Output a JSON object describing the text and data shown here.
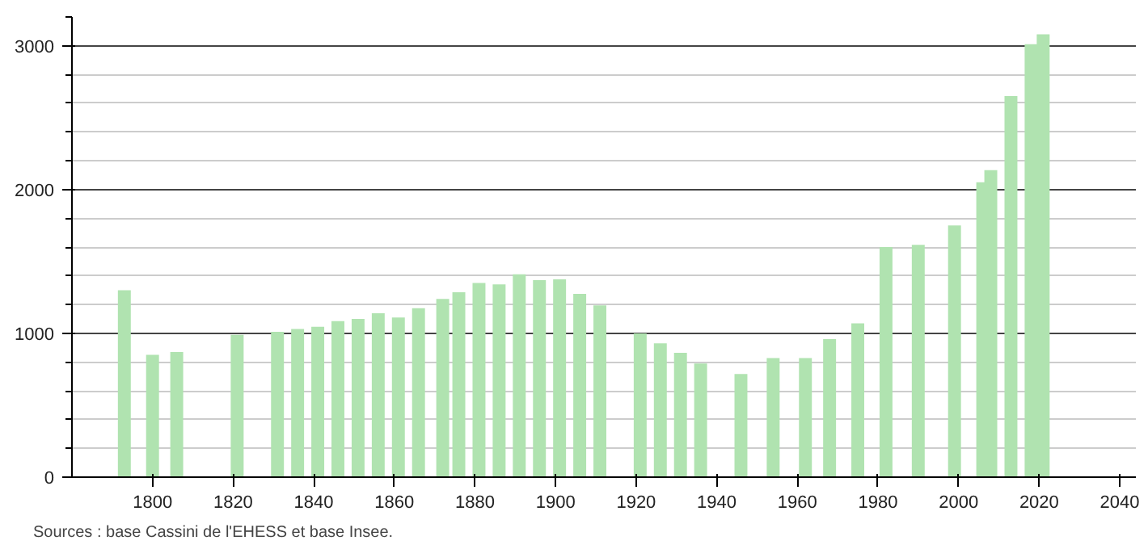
{
  "chart_data": {
    "type": "bar",
    "color": "#b0e3b0",
    "x": [
      1793,
      1800,
      1806,
      1821,
      1831,
      1836,
      1841,
      1846,
      1851,
      1856,
      1861,
      1866,
      1872,
      1876,
      1881,
      1886,
      1891,
      1896,
      1901,
      1906,
      1911,
      1921,
      1926,
      1931,
      1936,
      1946,
      1954,
      1962,
      1968,
      1975,
      1982,
      1990,
      1999,
      2006,
      2008,
      2013,
      2018,
      2021
    ],
    "values": [
      1300,
      850,
      870,
      990,
      1010,
      1030,
      1045,
      1085,
      1100,
      1140,
      1110,
      1175,
      1240,
      1285,
      1350,
      1340,
      1410,
      1370,
      1375,
      1275,
      1195,
      1000,
      930,
      865,
      790,
      717,
      828,
      828,
      960,
      1070,
      1600,
      1615,
      1750,
      2050,
      2135,
      2650,
      3010,
      3080
    ],
    "xlim": [
      1780,
      2044
    ],
    "xticks": [
      1800,
      1820,
      1840,
      1860,
      1880,
      1900,
      1920,
      1940,
      1960,
      1980,
      2000,
      2020,
      2040
    ],
    "ylim": [
      0,
      3200
    ],
    "yticks": [
      0,
      1000,
      2000,
      3000
    ],
    "grid": "y",
    "annotations": [
      "Sources : base Cassini de l'EHESS et base Insee."
    ]
  }
}
